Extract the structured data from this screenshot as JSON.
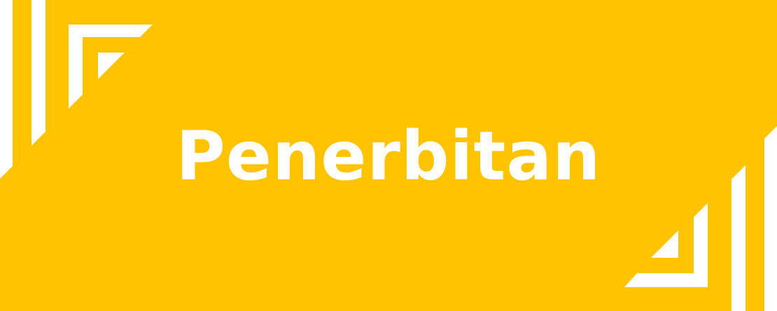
{
  "banner": {
    "title": "Penerbitan",
    "background_color": "#FFC300",
    "accent_color": "#FFFFFF",
    "decoration": "white-corner-chevron-stripes"
  }
}
